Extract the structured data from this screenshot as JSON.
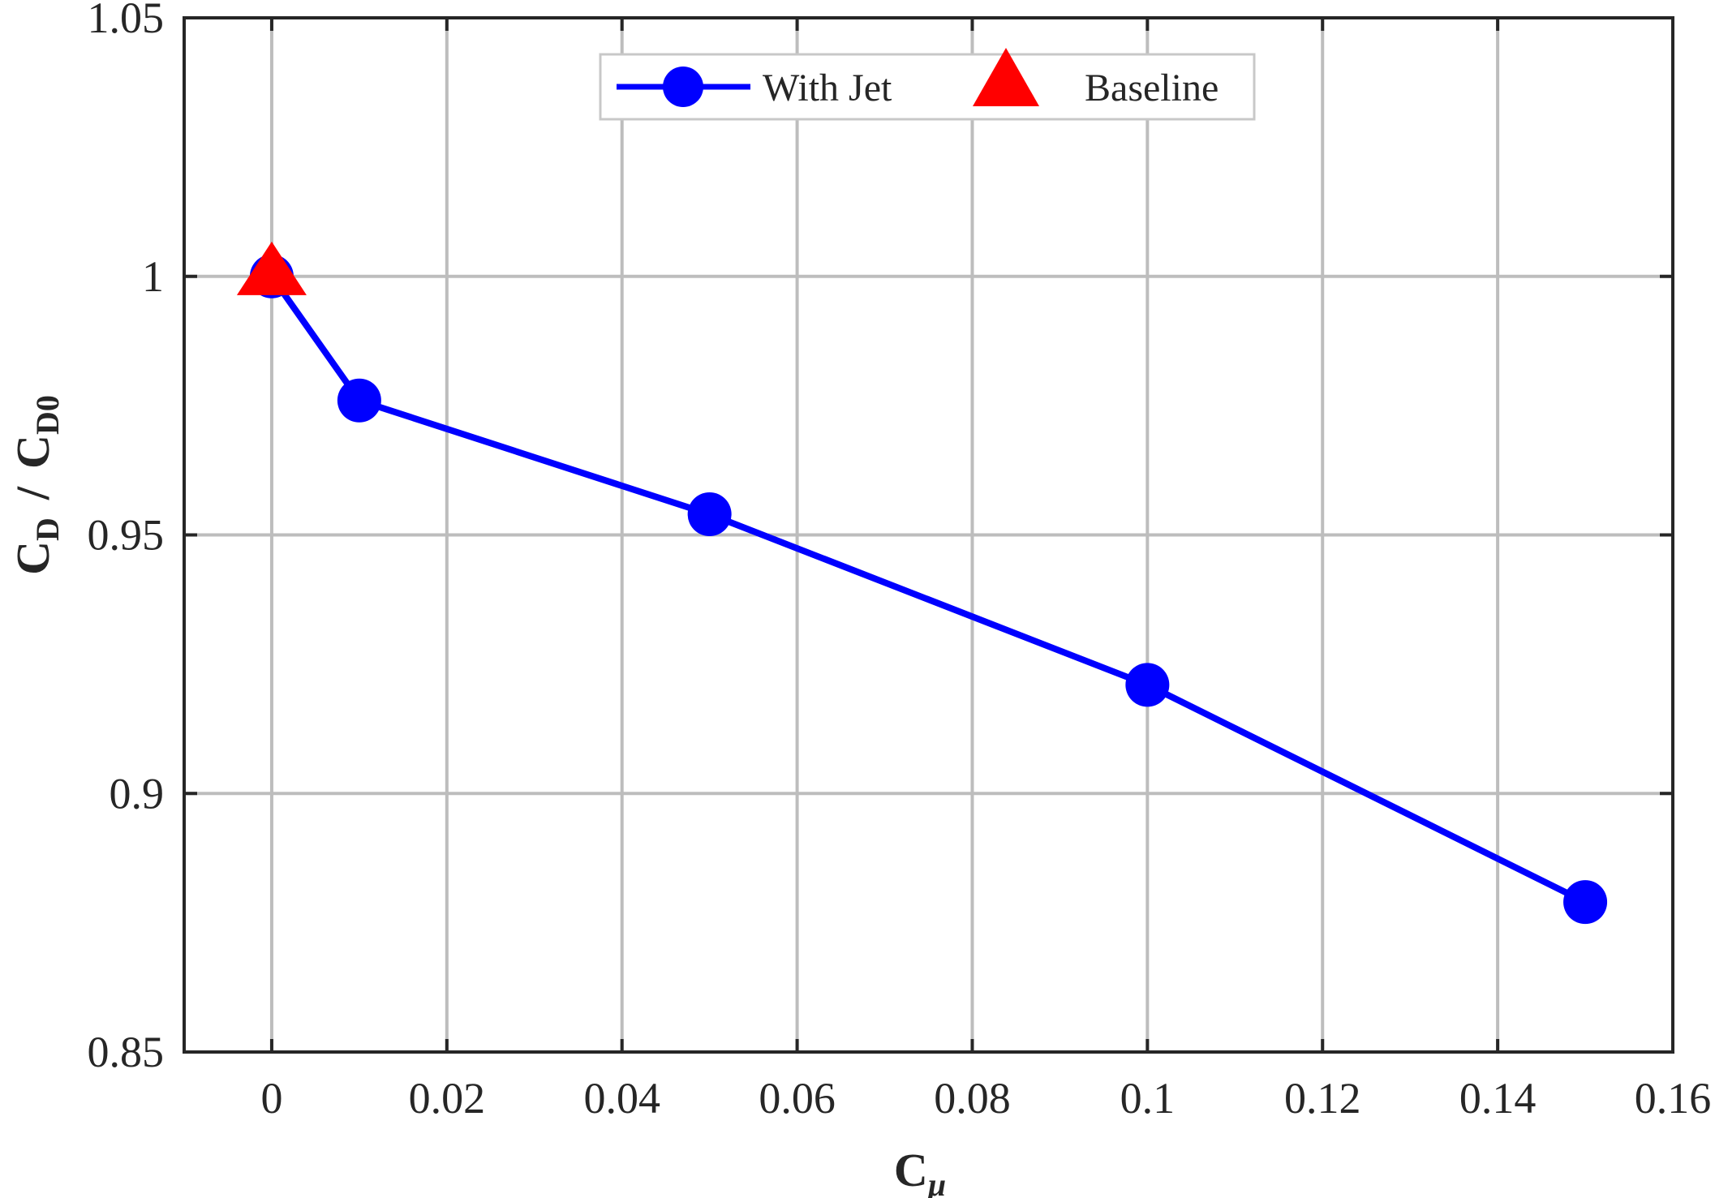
{
  "chart_data": {
    "type": "line",
    "title": "",
    "xlabel": {
      "main": "C",
      "sub": "μ"
    },
    "ylabel": {
      "num_main": "C",
      "num_sub": "D",
      "sep": "/",
      "den_main": "C",
      "den_sub": "D0"
    },
    "xlim": [
      -0.01,
      0.16
    ],
    "ylim": [
      0.85,
      1.05
    ],
    "xticks": [
      0,
      0.02,
      0.04,
      0.06,
      0.08,
      0.1,
      0.12,
      0.14,
      0.16
    ],
    "xtick_labels": [
      "0",
      "0.02",
      "0.04",
      "0.06",
      "0.08",
      "0.1",
      "0.12",
      "0.14",
      "0.16"
    ],
    "yticks": [
      0.85,
      0.9,
      0.95,
      1,
      1.05
    ],
    "ytick_labels": [
      "0.85",
      "0.9",
      "0.95",
      "1",
      "1.05"
    ],
    "grid": true,
    "legend_position": "top-center",
    "series": [
      {
        "name": "With Jet",
        "marker": "circle",
        "color": "#0000ff",
        "line": true,
        "x": [
          0,
          0.01,
          0.05,
          0.1,
          0.15
        ],
        "y": [
          1.0,
          0.976,
          0.954,
          0.921,
          0.879
        ]
      },
      {
        "name": "Baseline",
        "marker": "triangle",
        "color": "#ff0000",
        "line": false,
        "x": [
          0
        ],
        "y": [
          1.0
        ]
      }
    ]
  }
}
